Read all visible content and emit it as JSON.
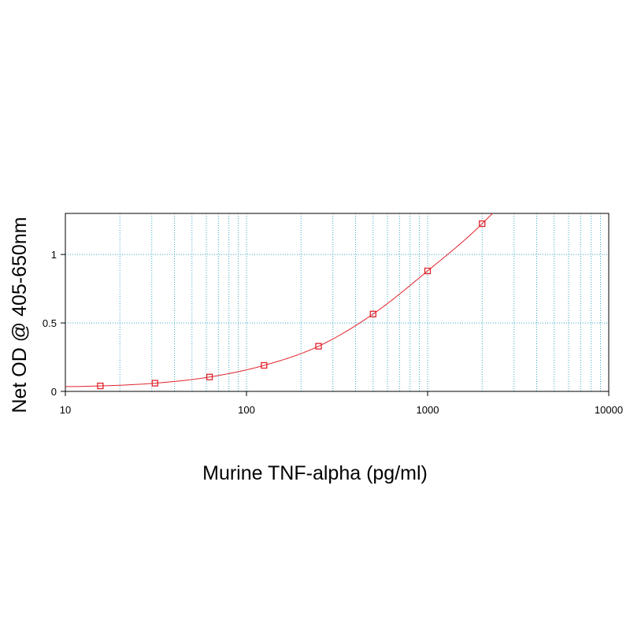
{
  "chart_data": {
    "type": "scatter",
    "xlabel": "Murine TNF-alpha (pg/ml)",
    "ylabel": "Net OD @ 405-650nm",
    "x_scale": "log",
    "xlim": [
      10,
      10000
    ],
    "ylim": [
      0,
      1.3
    ],
    "x_ticks": [
      "10",
      "100",
      "1000",
      "10000"
    ],
    "y_ticks": [
      "0",
      "0.5",
      "1"
    ],
    "grid": true,
    "series": [
      {
        "x": [
          15.6,
          31.25,
          62.5,
          125,
          250,
          500,
          1000,
          2000
        ],
        "y": [
          0.04,
          0.06,
          0.105,
          0.19,
          0.33,
          0.565,
          0.88,
          1.225
        ],
        "fit": "4PL curve"
      }
    ],
    "colors": {
      "series": "#e0232c",
      "grid": "#3aa7c9",
      "axis": "#000000"
    }
  }
}
